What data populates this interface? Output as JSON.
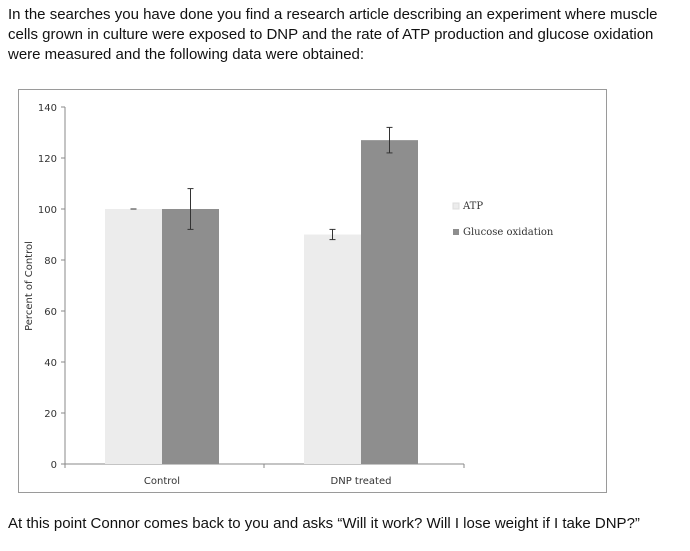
{
  "text": {
    "intro": "In the searches you have done you find a research article describing an experiment where muscle cells grown in culture were exposed to DNP and the rate of ATP production and glucose oxidation were measured and the following data were obtained:",
    "question": "At this point Connor comes back to you and asks “Will it work?  Will I lose weight if I take DNP?”"
  },
  "chart_data": {
    "type": "bar",
    "categories": [
      "Control",
      "DNP treated"
    ],
    "series": [
      {
        "name": "ATP",
        "values": [
          100,
          90
        ],
        "error": [
          0,
          2
        ],
        "color": "#ececec"
      },
      {
        "name": "Glucose oxidation",
        "values": [
          100,
          127
        ],
        "error": [
          8,
          5
        ],
        "color": "#8e8e8e"
      }
    ],
    "title": "",
    "xlabel": "",
    "ylabel": "Percent of Control",
    "ylim": [
      0,
      140
    ],
    "yticks": [
      0,
      20,
      40,
      60,
      80,
      100,
      120,
      140
    ],
    "grid": false,
    "legend_position": "right"
  }
}
